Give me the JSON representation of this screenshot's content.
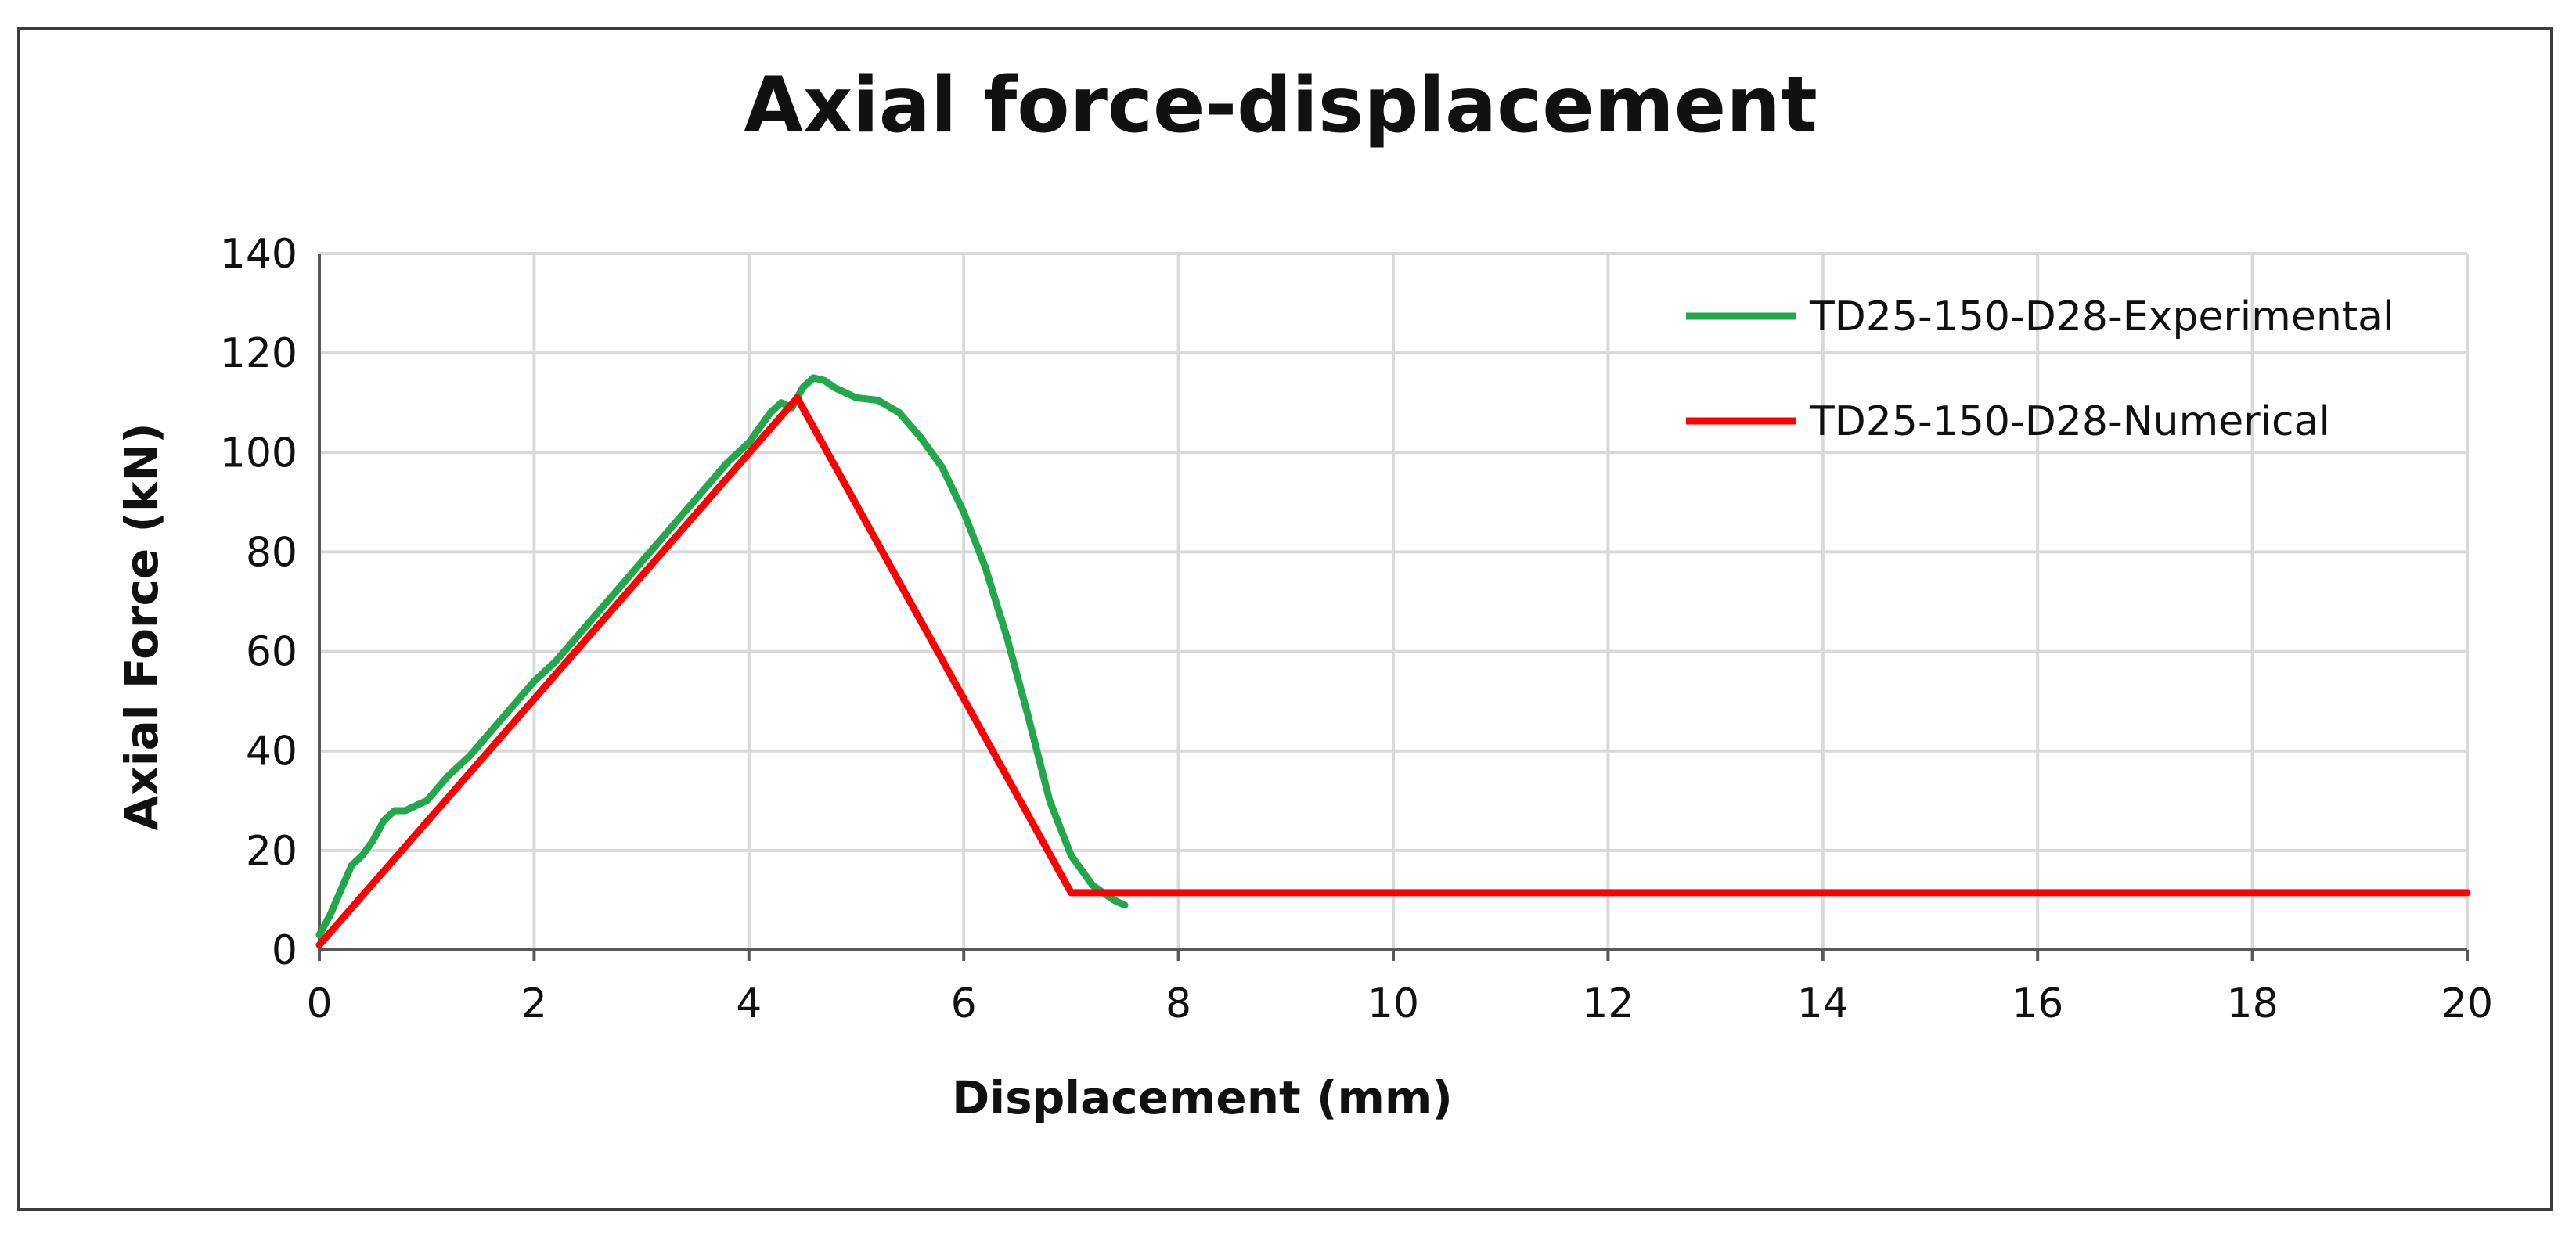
{
  "chart_data": {
    "type": "line",
    "title": "Axial force-displacement",
    "xlabel": "Displacement (mm)",
    "ylabel": "Axial Force (kN)",
    "xlim": [
      0,
      20
    ],
    "ylim": [
      0,
      140
    ],
    "x_ticks": [
      "0",
      "2",
      "4",
      "6",
      "8",
      "10",
      "12",
      "14",
      "16",
      "18",
      "20"
    ],
    "y_ticks": [
      "0",
      "20",
      "40",
      "60",
      "80",
      "100",
      "120",
      "140"
    ],
    "grid": "on",
    "legend_position": "top-right",
    "series": [
      {
        "name": "TD25-150-D28-Experimental",
        "color": "#22a84a",
        "points": [
          [
            0.0,
            3
          ],
          [
            0.1,
            7
          ],
          [
            0.2,
            12
          ],
          [
            0.3,
            17
          ],
          [
            0.4,
            19
          ],
          [
            0.5,
            22
          ],
          [
            0.6,
            26
          ],
          [
            0.7,
            28
          ],
          [
            0.8,
            28
          ],
          [
            0.9,
            29
          ],
          [
            1.0,
            30
          ],
          [
            1.2,
            35
          ],
          [
            1.4,
            39
          ],
          [
            1.6,
            44
          ],
          [
            1.8,
            49
          ],
          [
            2.0,
            54
          ],
          [
            2.2,
            58
          ],
          [
            2.4,
            63
          ],
          [
            2.6,
            68
          ],
          [
            2.8,
            73
          ],
          [
            3.0,
            78
          ],
          [
            3.2,
            83
          ],
          [
            3.4,
            88
          ],
          [
            3.6,
            93
          ],
          [
            3.8,
            98
          ],
          [
            4.0,
            102
          ],
          [
            4.2,
            108
          ],
          [
            4.3,
            110
          ],
          [
            4.4,
            109
          ],
          [
            4.5,
            113
          ],
          [
            4.6,
            115
          ],
          [
            4.7,
            114.5
          ],
          [
            4.8,
            113
          ],
          [
            5.0,
            111
          ],
          [
            5.2,
            110.5
          ],
          [
            5.4,
            108
          ],
          [
            5.6,
            103
          ],
          [
            5.8,
            97
          ],
          [
            6.0,
            88
          ],
          [
            6.2,
            77
          ],
          [
            6.4,
            63
          ],
          [
            6.6,
            47
          ],
          [
            6.8,
            30
          ],
          [
            7.0,
            19
          ],
          [
            7.2,
            13
          ],
          [
            7.4,
            10
          ],
          [
            7.5,
            9
          ]
        ]
      },
      {
        "name": "TD25-150-D28-Numerical",
        "color": "#ff0000",
        "points": [
          [
            0.0,
            1
          ],
          [
            4.45,
            111
          ],
          [
            7.0,
            11.5
          ],
          [
            20.0,
            11.5
          ]
        ]
      }
    ]
  }
}
